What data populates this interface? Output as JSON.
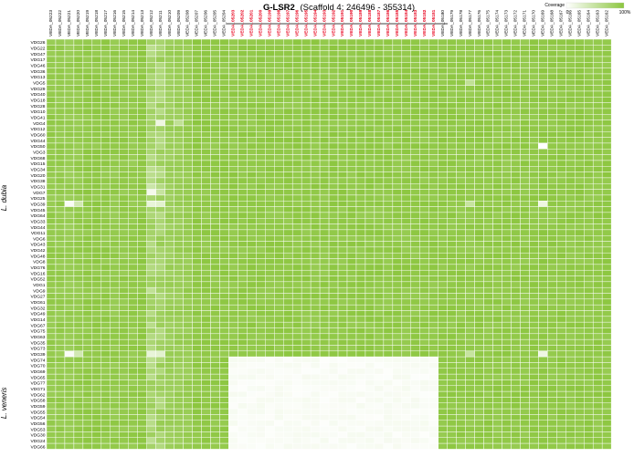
{
  "chart_data": {
    "type": "heatmap",
    "title": "G-LSR2",
    "subtitle": "(Scaffold 4: 246496 - 355314)",
    "legend": {
      "title": "Coverage",
      "min_label": "0",
      "max_label": "100%",
      "color_low": "#ffffff",
      "color_high": "#8cc63f",
      "placement": "top-right"
    },
    "columns": [
      "VEDA_05223",
      "VEDA_05222",
      "VEDA_05221",
      "VEDA_05220",
      "VEDA_05219",
      "VEDA_05218",
      "VEDA_05217",
      "VEDA_05216",
      "VEDA_05215",
      "VEDA_05214",
      "VEDA_05213",
      "VEDA_05212",
      "VEDA_05211",
      "VEDA_05210",
      "VEDA_05209",
      "VEDA_05208",
      "VEDA_05207",
      "VEDA_05206",
      "VEDA_05205",
      "VEDA_05204",
      "VEDA_05203",
      "VEDA_05202",
      "VEDA_05201",
      "VEDA_05200",
      "VEDA_05199",
      "VEDA_05198",
      "VEDA_05197",
      "VEDA_05196",
      "VEDA_05195",
      "VEDA_05194",
      "VEDA_05193",
      "VEDA_05192",
      "VEDA_05191",
      "VEDA_05190",
      "VEDA_05189",
      "VEDA_05188",
      "VEDA_05187",
      "VEDA_05186",
      "VEDA_05185",
      "VEDA_05184",
      "VEDA_05183",
      "VEDA_05182",
      "VEDA_05181",
      "VEDA_05180",
      "VEDA_05179",
      "VEDA_05178",
      "VEDA_05177",
      "VEDA_05176",
      "VEDA_05175",
      "VEDA_05174",
      "VEDA_05173",
      "VEDA_05172",
      "VEDA_05171",
      "VEDA_05170",
      "VEDA_05169",
      "VEDA_05168",
      "VEDA_05167",
      "VEDA_05166",
      "VEDA_05165",
      "VEDA_05164",
      "VEDA_05163",
      "VEDA_05162"
    ],
    "highlighted_columns": [
      "VEDA_05203",
      "VEDA_05202",
      "VEDA_05201",
      "VEDA_05200",
      "VEDA_05199",
      "VEDA_05198",
      "VEDA_05197",
      "VEDA_05196",
      "VEDA_05195",
      "VEDA_05194",
      "VEDA_05193",
      "VEDA_05192",
      "VEDA_05191",
      "VEDA_05190",
      "VEDA_05189",
      "VEDA_05188",
      "VEDA_05187",
      "VEDA_05186",
      "VEDA_05185",
      "VEDA_05184",
      "VEDA_05183",
      "VEDA_05182",
      "VEDA_05181"
    ],
    "highlight_color": "#e8001c",
    "rows": [
      "VDG26",
      "VDG22",
      "VDG47",
      "VDG17",
      "VDG46",
      "VDG36",
      "VDG13",
      "VDG5",
      "VDG29",
      "VDG40",
      "VDG18",
      "VDG28",
      "VDG10",
      "VDG41",
      "VDG4",
      "VDG12",
      "VDG60",
      "VDG44",
      "VDG50",
      "VDG3",
      "VDG68",
      "VDG15",
      "VDG34",
      "VDG20",
      "VDG38",
      "VDG31",
      "VDG7",
      "VDG25",
      "VDG39",
      "VDG45",
      "VDG64",
      "VDG33",
      "VDG44",
      "VDG11",
      "VDG6",
      "VDG43",
      "VDG42",
      "VDG48",
      "VDG8",
      "VDG76",
      "VDG16",
      "VDG52",
      "VDG1",
      "VDG9",
      "VDG27",
      "VDG61",
      "VDG32",
      "VDG49",
      "VDG14",
      "VDG67",
      "VDG75",
      "VDG63",
      "VDG35",
      "VDG73",
      "VDG39",
      "VDG74",
      "VDG70",
      "VDG69",
      "VDG65",
      "VDG77",
      "VDG71",
      "VDG62",
      "VDG58",
      "VDG59",
      "VDG55",
      "VDG54",
      "VDG56",
      "VDG53",
      "VDG30",
      "VDG24",
      "VDG66"
    ],
    "row_groups": [
      {
        "name": "L. dubia",
        "start": 0,
        "end": 54
      },
      {
        "name": "L. veneris",
        "start": 55,
        "end": 70
      }
    ],
    "default_coverage": 0.95,
    "notes": "Coverage fraction (0-1) per cell. Most cells ~0.9-1.0. Columns VEDA_05212/05211 lighter (~0.55-0.9). Rows VDG74-VDG66 have near-zero coverage in columns VEDA_05203-VEDA_05181.",
    "column_levels": {
      "VEDA_05223": 0.93,
      "VEDA_05222": 0.92,
      "VEDA_05221": 0.9,
      "VEDA_05220": 0.93,
      "VEDA_05219": 0.95,
      "VEDA_05218": 0.95,
      "VEDA_05217": 0.94,
      "VEDA_05216": 0.93,
      "VEDA_05215": 0.93,
      "VEDA_05214": 0.93,
      "VEDA_05213": 0.96,
      "VEDA_05212": 0.72,
      "VEDA_05211": 0.76,
      "VEDA_05210": 0.86,
      "VEDA_05209": 0.88,
      "VEDA_05208": 0.9,
      "VEDA_05207": 0.96,
      "VEDA_05177": 0.94,
      "VEDA_05169": 0.96,
      "VEDA_05164": 0.95
    },
    "low_block": {
      "rows": [
        "VDG74",
        "VDG70",
        "VDG69",
        "VDG65",
        "VDG77",
        "VDG71",
        "VDG62",
        "VDG58",
        "VDG59",
        "VDG55",
        "VDG54",
        "VDG56",
        "VDG53",
        "VDG30",
        "VDG24",
        "VDG66"
      ],
      "columns_from": "VEDA_05203",
      "columns_to": "VEDA_05181",
      "coverage": 0.02
    },
    "special_cells": [
      {
        "row": "VDG4",
        "column": "VEDA_05211",
        "coverage": 0.15
      },
      {
        "row": "VDG4",
        "column": "VEDA_05209",
        "coverage": 0.55
      },
      {
        "row": "VDG31",
        "column": "VEDA_05212",
        "coverage": 0.45
      },
      {
        "row": "VDG7",
        "column": "VEDA_05212",
        "coverage": 0.1
      },
      {
        "row": "VDG7",
        "column": "VEDA_05211",
        "coverage": 0.5
      },
      {
        "row": "VDG50",
        "column": "VEDA_05169",
        "coverage": 0.0
      },
      {
        "row": "VDG39",
        "column": "VEDA_05221",
        "coverage": 0.05
      },
      {
        "row": "VDG39",
        "column": "VEDA_05220",
        "coverage": 0.4
      },
      {
        "row": "VDG39",
        "column": "VEDA_05212",
        "coverage": 0.2
      },
      {
        "row": "VDG39",
        "column": "VEDA_05211",
        "coverage": 0.25
      },
      {
        "row": "VDG39",
        "column": "VEDA_05169",
        "coverage": 0.15
      },
      {
        "row": "VDG39",
        "column": "VEDA_05177",
        "coverage": 0.5
      },
      {
        "row": "VDG5",
        "column": "VEDA_05177",
        "coverage": 0.55
      },
      {
        "row": "VDG9",
        "column": "VEDA_05212",
        "coverage": 0.55
      }
    ]
  }
}
